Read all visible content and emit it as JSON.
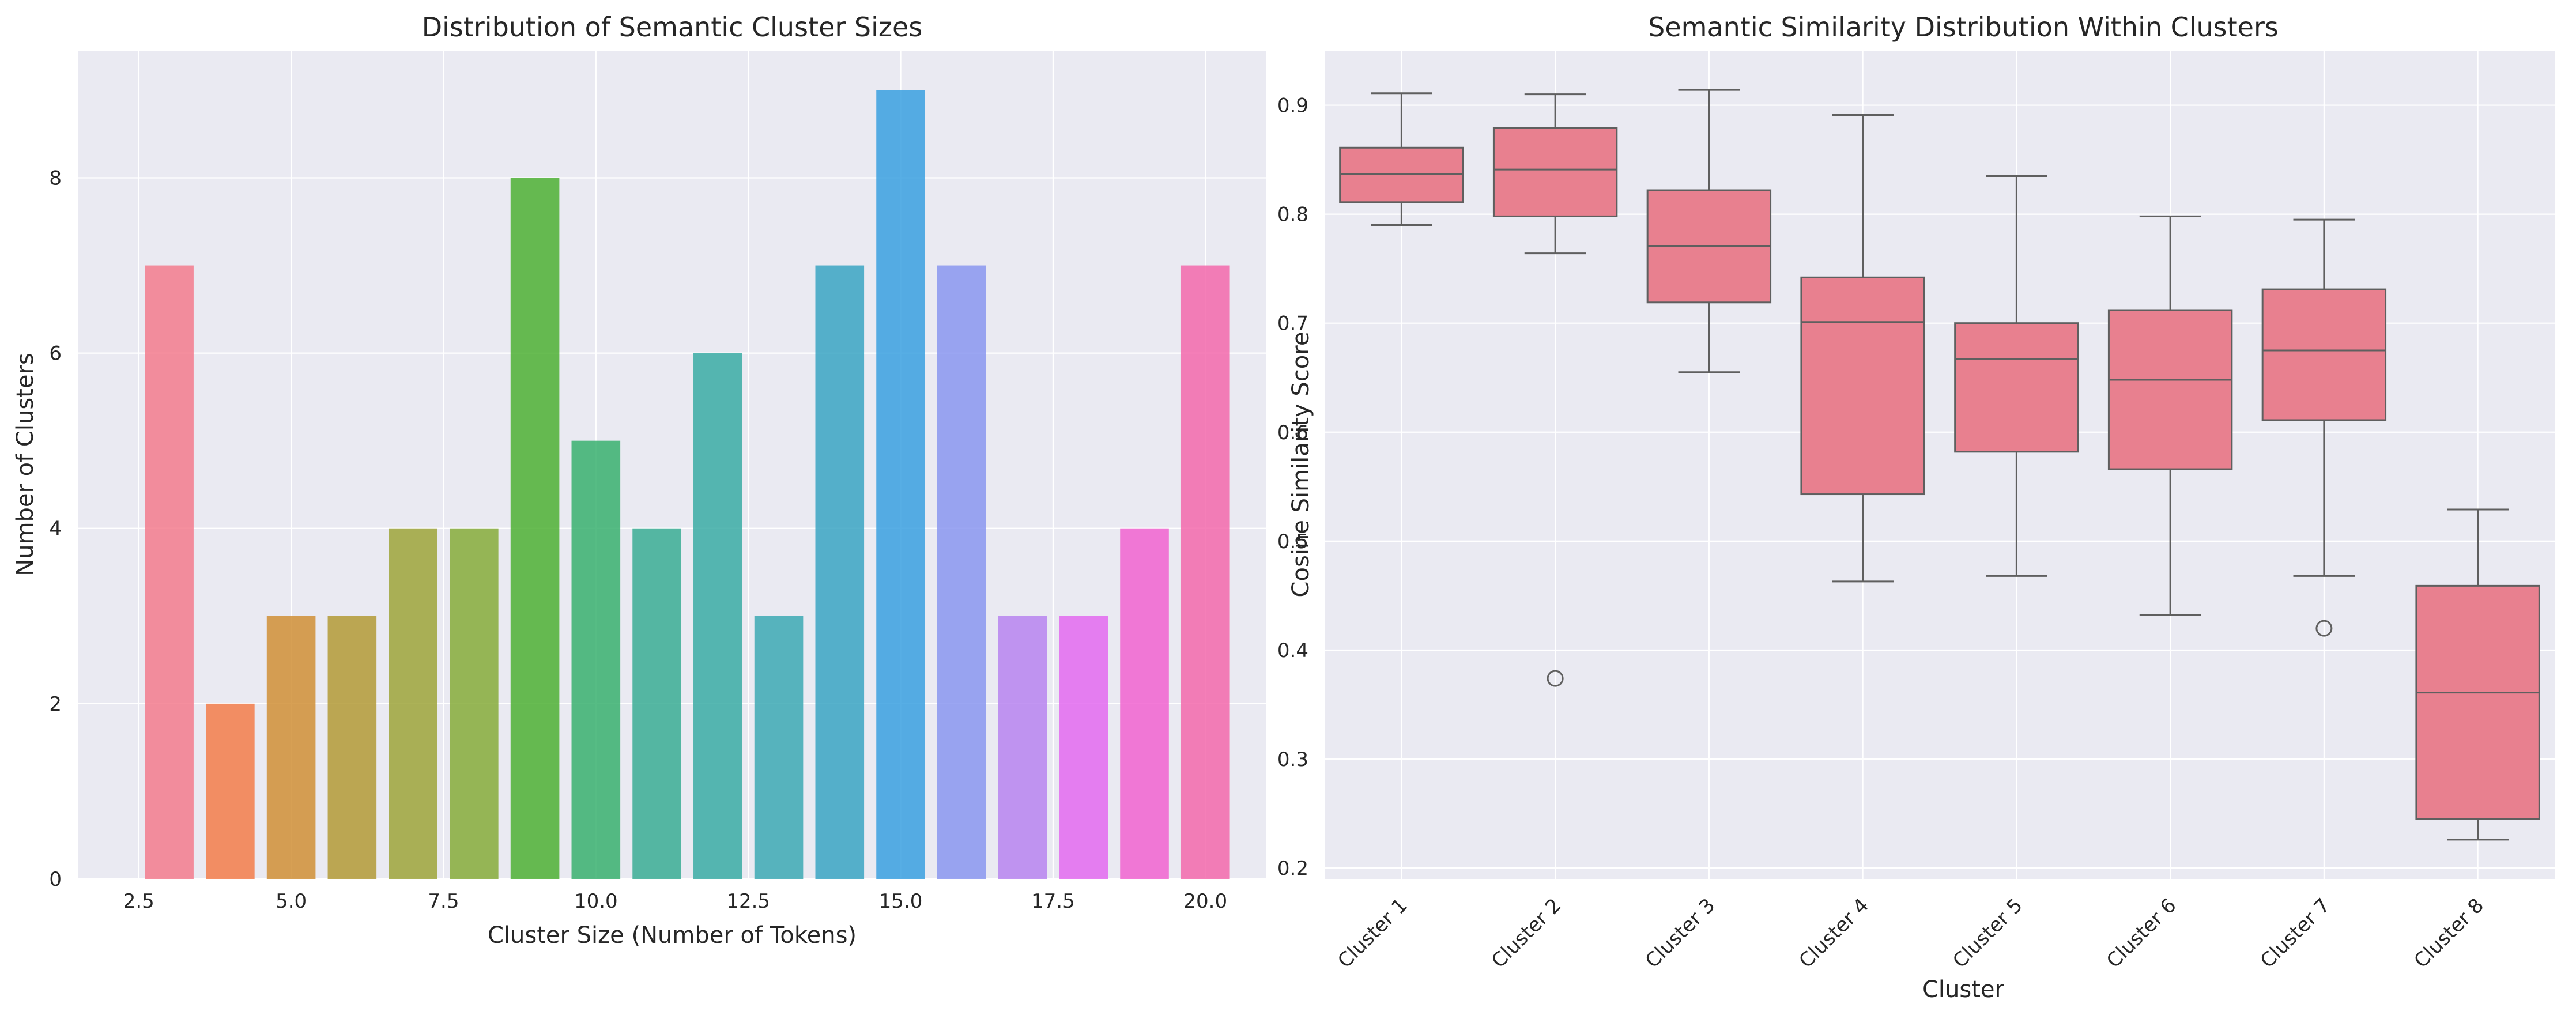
{
  "chart_data": [
    {
      "type": "bar",
      "title": "Distribution of Semantic Cluster Sizes",
      "xlabel": "Cluster Size (Number of Tokens)",
      "ylabel": "Number of Clusters",
      "xlim": [
        1.5,
        21.0
      ],
      "ylim": [
        0,
        9.45
      ],
      "xticks": [
        2.5,
        5.0,
        7.5,
        10.0,
        12.5,
        15.0,
        17.5,
        20.0
      ],
      "xtick_labels": [
        "2.5",
        "5.0",
        "7.5",
        "10.0",
        "12.5",
        "15.0",
        "17.5",
        "20.0"
      ],
      "yticks": [
        0,
        2,
        4,
        6,
        8
      ],
      "ytick_labels": [
        "0",
        "2",
        "4",
        "6",
        "8"
      ],
      "x": [
        3,
        4,
        5,
        6,
        7,
        8,
        9,
        10,
        11,
        12,
        13,
        14,
        15,
        16,
        17,
        18,
        19,
        20
      ],
      "values": [
        7,
        2,
        3,
        3,
        4,
        4,
        8,
        5,
        4,
        6,
        3,
        7,
        9,
        7,
        3,
        3,
        4,
        7
      ],
      "bar_width": 0.8,
      "colors": [
        "#f37b8d",
        "#f37c4a",
        "#d08f36",
        "#b39a36",
        "#9da53a",
        "#86ab3a",
        "#4eb034",
        "#38b06e",
        "#39ad94",
        "#3aaba4",
        "#3ca9b4",
        "#3aa5c3",
        "#3aa0e0",
        "#8a96f0",
        "#b784f0",
        "#e36af0",
        "#f163d0",
        "#f369ab"
      ],
      "grid": true
    },
    {
      "type": "box",
      "title": "Semantic Similarity Distribution Within Clusters",
      "xlabel": "Cluster",
      "ylabel": "Cosine Similarity Score",
      "ylim": [
        0.19,
        0.95
      ],
      "yticks": [
        0.2,
        0.3,
        0.4,
        0.5,
        0.6,
        0.7,
        0.8,
        0.9
      ],
      "ytick_labels": [
        "0.2",
        "0.3",
        "0.4",
        "0.5",
        "0.6",
        "0.7",
        "0.8",
        "0.9"
      ],
      "categories": [
        "Cluster 1",
        "Cluster 2",
        "Cluster 3",
        "Cluster 4",
        "Cluster 5",
        "Cluster 6",
        "Cluster 7",
        "Cluster 8"
      ],
      "boxes": [
        {
          "whislo": 0.79,
          "q1": 0.811,
          "med": 0.837,
          "q3": 0.861,
          "whishi": 0.911,
          "fliers": []
        },
        {
          "whislo": 0.764,
          "q1": 0.798,
          "med": 0.841,
          "q3": 0.879,
          "whishi": 0.91,
          "fliers": [
            0.374
          ]
        },
        {
          "whislo": 0.655,
          "q1": 0.719,
          "med": 0.771,
          "q3": 0.822,
          "whishi": 0.914,
          "fliers": []
        },
        {
          "whislo": 0.463,
          "q1": 0.543,
          "med": 0.701,
          "q3": 0.742,
          "whishi": 0.891,
          "fliers": []
        },
        {
          "whislo": 0.468,
          "q1": 0.582,
          "med": 0.667,
          "q3": 0.7,
          "whishi": 0.835,
          "fliers": []
        },
        {
          "whislo": 0.432,
          "q1": 0.566,
          "med": 0.648,
          "q3": 0.712,
          "whishi": 0.798,
          "fliers": []
        },
        {
          "whislo": 0.468,
          "q1": 0.611,
          "med": 0.675,
          "q3": 0.731,
          "whishi": 0.795,
          "fliers": [
            0.42
          ]
        },
        {
          "whislo": 0.226,
          "q1": 0.245,
          "med": 0.361,
          "q3": 0.459,
          "whishi": 0.529,
          "fliers": []
        }
      ],
      "box_color": "#e8808f",
      "line_color": "#5f5f5f",
      "grid": true
    }
  ]
}
